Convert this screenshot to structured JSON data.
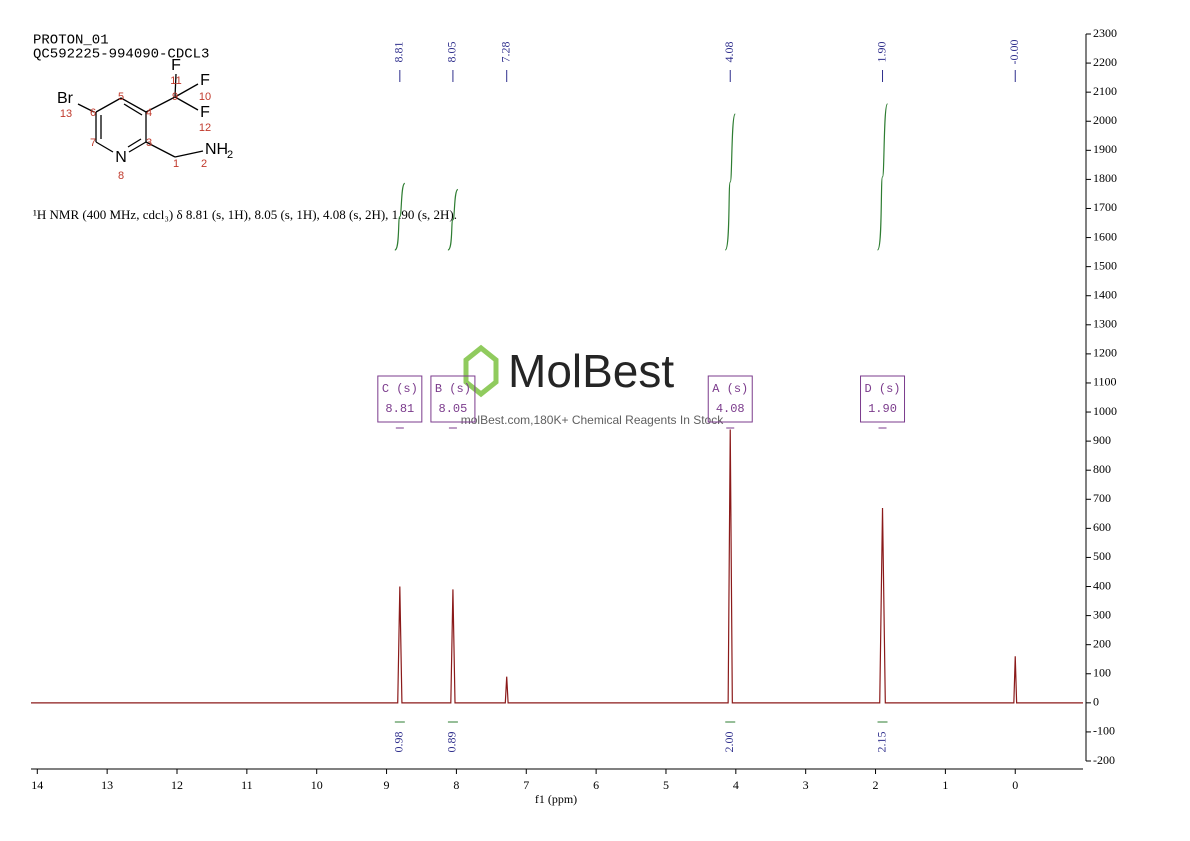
{
  "chart_data": {
    "type": "nmr",
    "experiment": "PROTON_01",
    "sample": "QC592225-994090-CDCL3",
    "description": "¹H NMR (400 MHz, cdcl₃) δ 8.81 (s, 1H), 8.05 (s, 1H), 4.08 (s, 2H), 1.90 (s, 2H).",
    "x_label": "f1 (ppm)",
    "x": [
      14.09,
      8.84,
      8.81,
      8.78,
      8.08,
      8.05,
      8.02,
      7.3,
      7.28,
      7.26,
      4.11,
      4.08,
      4.05,
      1.94,
      1.9,
      1.86,
      0.02,
      0.0,
      -0.02,
      -0.97
    ],
    "series": [
      {
        "name": "spectrum",
        "color": "#8b1a1a",
        "values": [
          0,
          0,
          400,
          0,
          0,
          390,
          0,
          0,
          90,
          0,
          0,
          940,
          0,
          0,
          670,
          0,
          0,
          160,
          0,
          0
        ]
      }
    ],
    "xlim": [
      14.09,
      -0.97
    ],
    "xticks": [
      14,
      13,
      12,
      11,
      10,
      9,
      8,
      7,
      6,
      5,
      4,
      3,
      2,
      1,
      0
    ],
    "ylim": [
      -200,
      2300
    ],
    "yticks": [
      -200,
      -100,
      0,
      100,
      200,
      300,
      400,
      500,
      600,
      700,
      800,
      900,
      1000,
      1100,
      1200,
      1300,
      1400,
      1500,
      1600,
      1700,
      1800,
      1900,
      2000,
      2100,
      2200,
      2300
    ],
    "peak_labels": [
      8.81,
      8.05,
      7.28,
      4.08,
      {
        "value": 1.9,
        "label": "1.90"
      },
      {
        "value": 0,
        "label": "-0.00"
      }
    ],
    "multiplets": [
      {
        "name": "C (s)",
        "shift": 8.81,
        "integral": 0.98
      },
      {
        "name": "B (s)",
        "shift": 8.05,
        "integral": 0.89
      },
      {
        "name": "A (s)",
        "shift": 4.08,
        "integral": {
          "value": 2,
          "label": "2.00"
        }
      },
      {
        "name": "D (s)",
        "shift": {
          "value": 1.9,
          "label": "1.90"
        },
        "integral": 2.15
      }
    ]
  },
  "structure": {
    "labels": [
      "Br",
      "13",
      "6",
      "5",
      "4",
      "9",
      "F",
      "11",
      "10",
      "F",
      "12",
      "7",
      "N",
      "8",
      "3",
      "1",
      "NH",
      "2"
    ]
  },
  "watermark": {
    "brand": "MolBest",
    "tagline": "molBest.com,180K+ Chemical Reagents In Stock"
  }
}
